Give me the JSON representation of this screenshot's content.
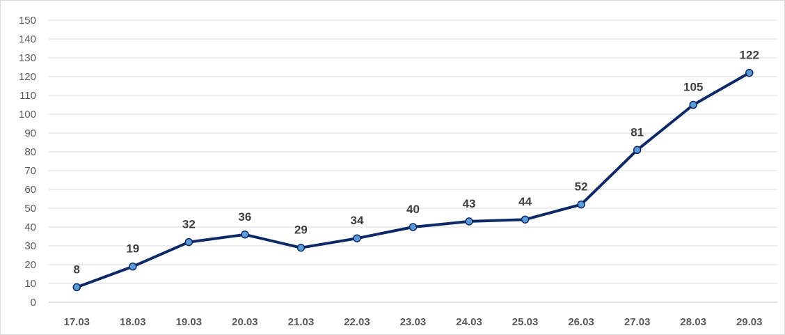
{
  "chart_data": {
    "type": "line",
    "title": "",
    "xlabel": "",
    "ylabel": "",
    "ylim": [
      0,
      150
    ],
    "yticks": [
      "0",
      "10",
      "20",
      "30",
      "40",
      "50",
      "60",
      "70",
      "80",
      "90",
      "100",
      "110",
      "120",
      "130",
      "140",
      "150"
    ],
    "grid": true,
    "legend": "none",
    "categories": [
      "17.03",
      "18.03",
      "19.03",
      "20.03",
      "21.03",
      "22.03",
      "23.03",
      "24.03",
      "25.03",
      "26.03",
      "27.03",
      "28.03",
      "29.03"
    ],
    "series": [
      {
        "values": [
          8,
          19,
          32,
          36,
          29,
          34,
          40,
          43,
          44,
          52,
          81,
          105,
          122
        ],
        "line_color": "#0d2a66",
        "marker_color": "#5b9bd5"
      }
    ],
    "data_labels": [
      "8",
      "19",
      "32",
      "36",
      "29",
      "34",
      "40",
      "43",
      "44",
      "52",
      "81",
      "105",
      "122"
    ]
  }
}
